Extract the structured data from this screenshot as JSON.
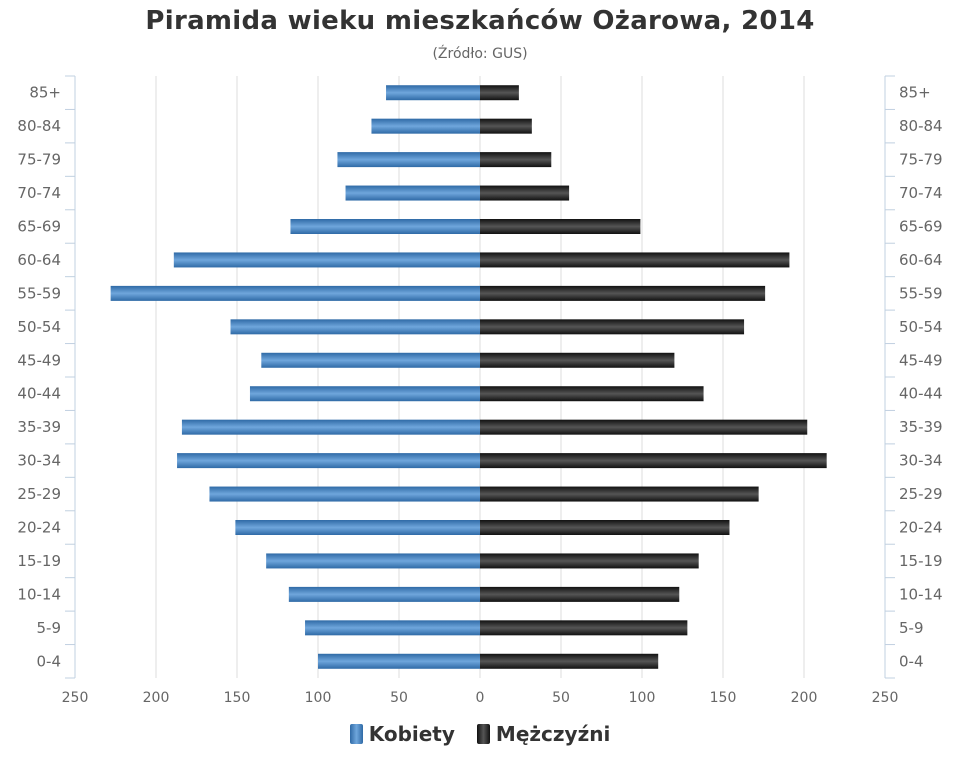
{
  "chart_data": {
    "type": "bar",
    "orientation": "horizontal",
    "title": "Piramida wieku mieszkańców Ożarowa, 2014",
    "subtitle": "(Źródło: GUS)",
    "categories": [
      "85+",
      "80-84",
      "75-79",
      "70-74",
      "65-69",
      "60-64",
      "55-59",
      "50-54",
      "45-49",
      "40-44",
      "35-39",
      "30-34",
      "25-29",
      "20-24",
      "15-19",
      "10-14",
      "5-9",
      "0-4"
    ],
    "series": [
      {
        "name": "Kobiety",
        "color": "#4a86c5",
        "values": [
          58,
          67,
          88,
          83,
          117,
          189,
          228,
          154,
          135,
          142,
          184,
          187,
          167,
          151,
          132,
          118,
          108,
          100
        ]
      },
      {
        "name": "Mężczyźni",
        "color": "#1a1a1a",
        "values": [
          24,
          32,
          44,
          55,
          99,
          191,
          176,
          163,
          120,
          138,
          202,
          214,
          172,
          154,
          135,
          123,
          128,
          110
        ]
      }
    ],
    "xaxis": {
      "ticks": [
        "250",
        "200",
        "150",
        "100",
        "50",
        "0",
        "50",
        "100",
        "150",
        "200",
        "250"
      ],
      "range": [
        -250,
        250
      ]
    },
    "grid": true,
    "legend": "bottom-center"
  }
}
